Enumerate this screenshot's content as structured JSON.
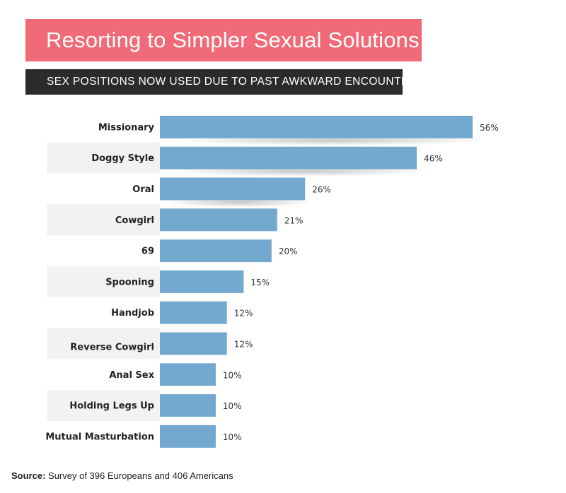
{
  "title": "Resorting to Simpler Sexual Solutions",
  "subtitle": "SEX POSITIONS NOW USED DUE TO PAST AWKWARD ENCOUNTERS",
  "source": {
    "label": "Source:",
    "text": "Survey of 396 Europeans and 406 Americans"
  },
  "colors": {
    "title_bg": "#f06a77",
    "subtitle_bg": "#2b2b2b",
    "bar": "#74a9cf",
    "stripe": "#f2f2f2"
  },
  "chart_data": {
    "type": "bar",
    "orientation": "horizontal",
    "title": "Resorting to Simpler Sexual Solutions",
    "subtitle": "SEX POSITIONS NOW USED DUE TO PAST AWKWARD ENCOUNTERS",
    "categories": [
      "Missionary",
      "Doggy Style",
      "Oral",
      "Cowgirl",
      "69",
      "Spooning",
      "Handjob",
      "Reverse Cowgirl",
      "Anal Sex",
      "Holding Legs Up",
      "Mutual Masturbation"
    ],
    "values": [
      56,
      46,
      26,
      21,
      20,
      15,
      12,
      12,
      10,
      10,
      10
    ],
    "value_labels": [
      "56%",
      "46%",
      "26%",
      "21%",
      "20%",
      "15%",
      "12%",
      "12%",
      "10%",
      "10%",
      "10%"
    ],
    "unit": "%",
    "xlabel": "",
    "ylabel": "",
    "xlim": [
      0,
      56
    ],
    "grid": false,
    "legend": "none"
  }
}
